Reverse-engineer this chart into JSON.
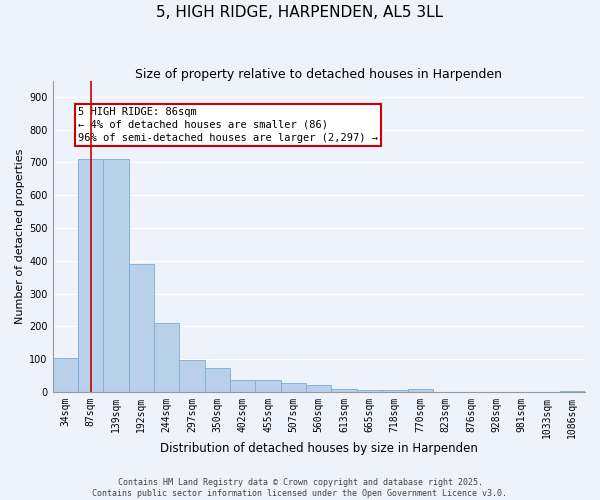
{
  "title": "5, HIGH RIDGE, HARPENDEN, AL5 3LL",
  "subtitle": "Size of property relative to detached houses in Harpenden",
  "xlabel": "Distribution of detached houses by size in Harpenden",
  "ylabel": "Number of detached properties",
  "categories": [
    "34sqm",
    "87sqm",
    "139sqm",
    "192sqm",
    "244sqm",
    "297sqm",
    "350sqm",
    "402sqm",
    "455sqm",
    "507sqm",
    "560sqm",
    "613sqm",
    "665sqm",
    "718sqm",
    "770sqm",
    "823sqm",
    "876sqm",
    "928sqm",
    "981sqm",
    "1033sqm",
    "1086sqm"
  ],
  "values": [
    103,
    710,
    710,
    390,
    210,
    98,
    72,
    35,
    35,
    28,
    20,
    8,
    5,
    5,
    9,
    0,
    0,
    0,
    0,
    0,
    2
  ],
  "bar_color": "#b8d0ea",
  "bar_edge_color": "#7aafd4",
  "vline_x_index": 1,
  "vline_color": "#cc0000",
  "annotation_text": "5 HIGH RIDGE: 86sqm\n← 4% of detached houses are smaller (86)\n96% of semi-detached houses are larger (2,297) →",
  "annotation_box_edgecolor": "#cc0000",
  "annotation_fontsize": 7.5,
  "background_color": "#eef2fb",
  "grid_color": "#ffffff",
  "ylim": [
    0,
    950
  ],
  "yticks": [
    0,
    100,
    200,
    300,
    400,
    500,
    600,
    700,
    800,
    900
  ],
  "footer_line1": "Contains HM Land Registry data © Crown copyright and database right 2025.",
  "footer_line2": "Contains public sector information licensed under the Open Government Licence v3.0.",
  "title_fontsize": 11,
  "subtitle_fontsize": 9,
  "xlabel_fontsize": 8.5,
  "ylabel_fontsize": 8,
  "tick_fontsize": 7,
  "footer_fontsize": 6
}
